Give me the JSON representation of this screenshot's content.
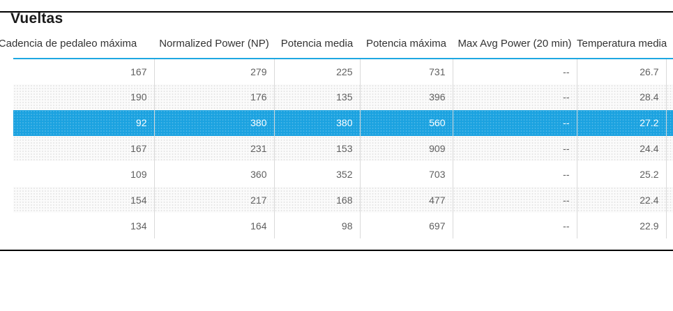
{
  "title": "Vueltas",
  "table": {
    "columns": [
      "Cadencia de pedaleo máxima",
      "Normalized Power (NP)",
      "Potencia media",
      "Potencia máxima",
      "Max Avg Power (20 min)",
      "Temperatura media"
    ],
    "rows": [
      [
        "167",
        "279",
        "225",
        "731",
        "--",
        "26.7"
      ],
      [
        "190",
        "176",
        "135",
        "396",
        "--",
        "28.4"
      ],
      [
        "92",
        "380",
        "380",
        "560",
        "--",
        "27.2"
      ],
      [
        "167",
        "231",
        "153",
        "909",
        "--",
        "24.4"
      ],
      [
        "109",
        "360",
        "352",
        "703",
        "--",
        "25.2"
      ],
      [
        "154",
        "217",
        "168",
        "477",
        "--",
        "22.4"
      ],
      [
        "134",
        "164",
        "98",
        "697",
        "--",
        "22.9"
      ]
    ],
    "selected_row_index": 2
  },
  "colors": {
    "selected_row": "#1ba2e0",
    "header_underline": "#1ea7e2",
    "frame_border": "#000000"
  }
}
